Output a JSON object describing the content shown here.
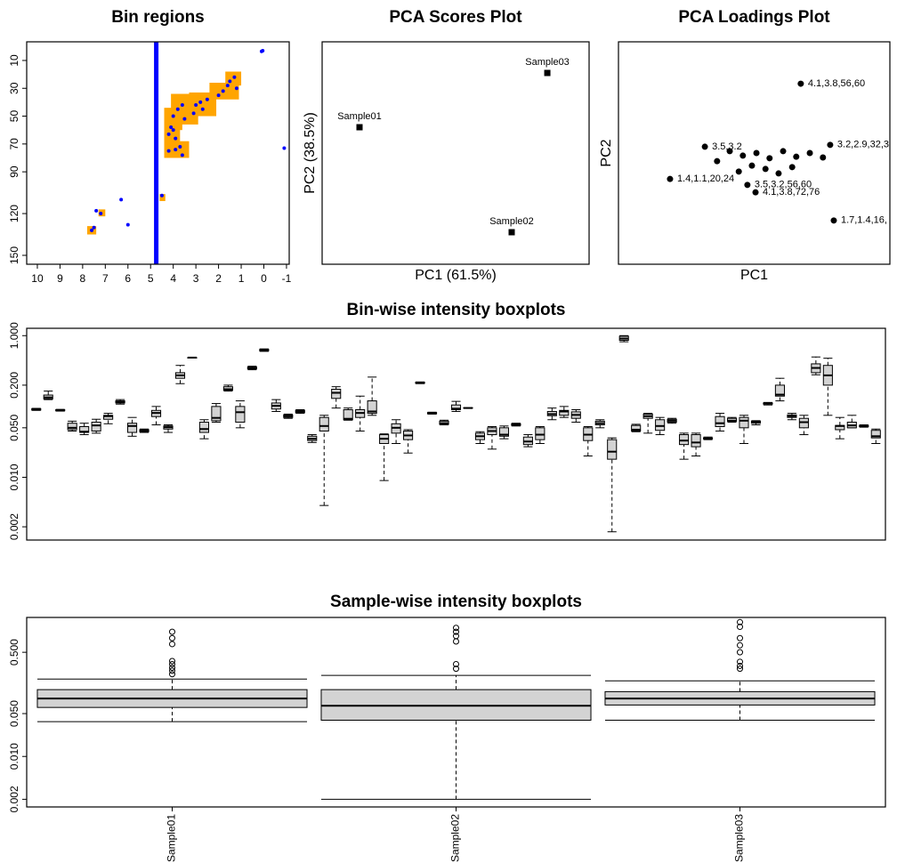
{
  "chart_data": [
    {
      "type": "scatter",
      "title": "Bin regions",
      "xlim": [
        10.47,
        -1.12
      ],
      "ylim": [
        156.4,
        -3.4
      ],
      "xticks": [
        10,
        9,
        8,
        7,
        6,
        5,
        4,
        3,
        2,
        1,
        0,
        -1
      ],
      "yticks": [
        10,
        30,
        50,
        70,
        90,
        120,
        150
      ],
      "bins_color": "#ffa500",
      "bins": [
        [
          1.7,
          1.0,
          18,
          28
        ],
        [
          2.4,
          1.1,
          26,
          38
        ],
        [
          3.3,
          2.1,
          33,
          50
        ],
        [
          4.1,
          2.9,
          34,
          56
        ],
        [
          4.4,
          3.6,
          44,
          60
        ],
        [
          4.4,
          3.7,
          58,
          70
        ],
        [
          4.4,
          3.3,
          68,
          80
        ],
        [
          4.6,
          4.35,
          106,
          111
        ],
        [
          7.3,
          7.0,
          117,
          122
        ],
        [
          7.8,
          7.4,
          129,
          135
        ]
      ],
      "lines": [
        {
          "color": "#0000ff",
          "x": [
            4.75,
            4.75
          ],
          "y": [
            -3.4,
            156.4
          ]
        }
      ],
      "series": [
        {
          "color": "#0000ff",
          "x": [
            0.05,
            0.1,
            1.3,
            1.5,
            1.2,
            1.8,
            2.0,
            1.6,
            2.5,
            2.8,
            3.0,
            2.7,
            3.1,
            3.6,
            3.8,
            3.5,
            4.0,
            4.0,
            4.2,
            3.9,
            4.1,
            3.7,
            3.9,
            4.2,
            3.6,
            7.6,
            7.5,
            7.2,
            7.4,
            6.3,
            6.0,
            -0.9,
            4.5
          ],
          "y": [
            3,
            3.5,
            22,
            25,
            30,
            32,
            35,
            28,
            38,
            40,
            42,
            45,
            48,
            42,
            45,
            52,
            50,
            60,
            63,
            66,
            58,
            72,
            74,
            75,
            78,
            132,
            130,
            120,
            118,
            110,
            128,
            73,
            107
          ]
        }
      ]
    },
    {
      "type": "scatter",
      "title": "PCA Scores Plot",
      "xlabel": "PC1 (61.5%)",
      "ylabel": "PC2 (38.5%)",
      "marker": "square",
      "xlim": [
        -1,
        1
      ],
      "ylim": [
        -1,
        1
      ],
      "series": [
        {
          "color": "#000000",
          "x": [
            -0.72,
            0.42,
            0.687
          ],
          "y": [
            0.232,
            -0.712,
            0.72
          ],
          "labels": [
            "Sample01",
            "Sample02",
            "Sample03"
          ]
        }
      ]
    },
    {
      "type": "scatter",
      "title": "PCA Loadings Plot",
      "xlabel": "PC1",
      "ylabel": "PC2",
      "marker": "circle",
      "xlim": [
        -0.3,
        0.3
      ],
      "ylim": [
        -0.3,
        0.3
      ],
      "series": [
        {
          "color": "#000000",
          "x": [
            0.103,
            0.168,
            -0.186,
            0.176,
            -0.015,
            0.003,
            -0.109,
            -0.082,
            -0.054,
            -0.025,
            0.005,
            0.034,
            0.064,
            0.093,
            0.123,
            0.152,
            0.025,
            0.054,
            0.084,
            -0.034,
            -0.005
          ],
          "y": [
            0.187,
            0.022,
            -0.07,
            -0.182,
            -0.086,
            -0.106,
            0.017,
            -0.022,
            0.005,
            -0.007,
            0,
            -0.014,
            0.005,
            -0.01,
            0,
            -0.012,
            -0.043,
            -0.055,
            -0.038,
            -0.05,
            -0.034
          ],
          "labels": [
            "4.1,3.8,56,60",
            "3.2,2.9,32,3",
            "1.4,1.1,20,24",
            "1.7,1.4,16,",
            "3.5,3.2,56,60",
            "4.1,3.8,72,76",
            "3.5,3.2",
            null,
            null,
            null,
            null,
            null,
            null,
            null,
            null,
            null,
            null,
            null,
            null,
            null,
            null
          ]
        }
      ]
    },
    {
      "type": "boxplot",
      "title": "Bin-wise intensity boxplots",
      "log": true,
      "color": "#d3d3d3",
      "ylim": [
        0.0013,
        1.27
      ],
      "yticks": [
        {
          "value": 0.002,
          "label": "0.002"
        },
        {
          "value": 0.01,
          "label": "0.010"
        },
        {
          "value": 0.05,
          "label": "0.050"
        },
        {
          "value": 0.2,
          "label": "0.200"
        },
        {
          "value": 1,
          "label": "1.000"
        }
      ],
      "stats": [
        [
          0.088,
          0.089,
          0.091,
          0.093,
          0.094
        ],
        [
          0.125,
          0.128,
          0.134,
          0.145,
          0.165
        ],
        [
          0.086,
          0.087,
          0.088,
          0.09,
          0.091
        ],
        [
          0.045,
          0.047,
          0.05,
          0.058,
          0.062
        ],
        [
          0.04,
          0.043,
          0.044,
          0.052,
          0.058
        ],
        [
          0.042,
          0.045,
          0.054,
          0.06,
          0.066
        ],
        [
          0.057,
          0.066,
          0.073,
          0.075,
          0.08
        ],
        [
          0.108,
          0.112,
          0.115,
          0.12,
          0.125
        ],
        [
          0.038,
          0.043,
          0.053,
          0.058,
          0.07
        ],
        [
          0.043,
          0.044,
          0.045,
          0.047,
          0.048
        ],
        [
          0.055,
          0.072,
          0.081,
          0.088,
          0.1
        ],
        [
          0.043,
          0.048,
          0.051,
          0.053,
          0.055
        ],
        [
          0.21,
          0.25,
          0.275,
          0.3,
          0.38
        ],
        [
          0.49,
          0.49,
          0.49,
          0.49,
          0.49
        ],
        [
          0.035,
          0.043,
          0.048,
          0.06,
          0.065
        ],
        [
          0.06,
          0.063,
          0.069,
          0.1,
          0.11
        ],
        [
          0.165,
          0.17,
          0.175,
          0.19,
          0.2
        ],
        [
          0.05,
          0.06,
          0.083,
          0.1,
          0.12
        ],
        [
          0.33,
          0.34,
          0.35,
          0.36,
          0.37
        ],
        [
          0.6,
          0.61,
          0.62,
          0.64,
          0.65
        ],
        [
          0.085,
          0.092,
          0.102,
          0.112,
          0.125
        ],
        [
          0.068,
          0.07,
          0.073,
          0.076,
          0.078
        ],
        [
          0.08,
          0.082,
          0.085,
          0.088,
          0.09
        ],
        [
          0.031,
          0.033,
          0.035,
          0.038,
          0.04
        ],
        [
          0.004,
          0.045,
          0.053,
          0.07,
          0.075
        ],
        [
          0.095,
          0.13,
          0.156,
          0.175,
          0.19
        ],
        [
          0.064,
          0.065,
          0.067,
          0.09,
          0.095
        ],
        [
          0.045,
          0.07,
          0.081,
          0.09,
          0.14
        ],
        [
          0.075,
          0.08,
          0.085,
          0.12,
          0.26
        ],
        [
          0.009,
          0.03,
          0.035,
          0.04,
          0.041
        ],
        [
          0.03,
          0.042,
          0.05,
          0.057,
          0.065
        ],
        [
          0.022,
          0.034,
          0.039,
          0.045,
          0.047
        ],
        [
          0.21,
          0.212,
          0.216,
          0.22,
          0.222
        ],
        [
          0.078,
          0.079,
          0.081,
          0.082,
          0.083
        ],
        [
          0.055,
          0.056,
          0.058,
          0.062,
          0.064
        ],
        [
          0.085,
          0.09,
          0.093,
          0.105,
          0.118
        ],
        [
          0.094,
          0.095,
          0.095,
          0.096,
          0.096
        ],
        [
          0.03,
          0.034,
          0.038,
          0.042,
          0.044
        ],
        [
          0.025,
          0.04,
          0.045,
          0.05,
          0.052
        ],
        [
          0.035,
          0.038,
          0.04,
          0.05,
          0.053
        ],
        [
          0.053,
          0.054,
          0.055,
          0.057,
          0.058
        ],
        [
          0.027,
          0.029,
          0.032,
          0.037,
          0.04
        ],
        [
          0.03,
          0.034,
          0.04,
          0.05,
          0.052
        ],
        [
          0.065,
          0.074,
          0.078,
          0.085,
          0.095
        ],
        [
          0.07,
          0.075,
          0.085,
          0.088,
          0.1
        ],
        [
          0.06,
          0.068,
          0.076,
          0.084,
          0.09
        ],
        [
          0.02,
          0.033,
          0.04,
          0.05,
          0.052
        ],
        [
          0.05,
          0.055,
          0.058,
          0.062,
          0.065
        ],
        [
          0.0017,
          0.018,
          0.023,
          0.034,
          0.036
        ],
        [
          0.82,
          0.86,
          0.91,
          0.98,
          1.0
        ],
        [
          0.044,
          0.045,
          0.047,
          0.054,
          0.056
        ],
        [
          0.042,
          0.068,
          0.073,
          0.078,
          0.08
        ],
        [
          0.04,
          0.046,
          0.053,
          0.065,
          0.07
        ],
        [
          0.058,
          0.06,
          0.063,
          0.066,
          0.068
        ],
        [
          0.018,
          0.029,
          0.033,
          0.04,
          0.042
        ],
        [
          0.02,
          0.027,
          0.031,
          0.04,
          0.042
        ],
        [
          0.034,
          0.035,
          0.035,
          0.036,
          0.037
        ],
        [
          0.045,
          0.052,
          0.058,
          0.072,
          0.08
        ],
        [
          0.06,
          0.062,
          0.063,
          0.068,
          0.07
        ],
        [
          0.03,
          0.05,
          0.063,
          0.07,
          0.075
        ],
        [
          0.055,
          0.058,
          0.06,
          0.062,
          0.063
        ],
        [
          0.105,
          0.108,
          0.11,
          0.112,
          0.114
        ],
        [
          0.12,
          0.14,
          0.147,
          0.2,
          0.25
        ],
        [
          0.065,
          0.07,
          0.073,
          0.076,
          0.08
        ],
        [
          0.04,
          0.05,
          0.06,
          0.068,
          0.075
        ],
        [
          0.28,
          0.3,
          0.35,
          0.4,
          0.5
        ],
        [
          0.075,
          0.2,
          0.275,
          0.38,
          0.48
        ],
        [
          0.035,
          0.047,
          0.053,
          0.054,
          0.07
        ],
        [
          0.05,
          0.05,
          0.054,
          0.06,
          0.075
        ],
        [
          0.051,
          0.052,
          0.053,
          0.054,
          0.055
        ],
        [
          0.03,
          0.036,
          0.038,
          0.046,
          0.048
        ]
      ]
    },
    {
      "type": "boxplot",
      "title": "Sample-wise intensity boxplots",
      "log": true,
      "color": "#d3d3d3",
      "ylim": [
        0.0015,
        1.85
      ],
      "yticks": [
        {
          "value": 0.002,
          "label": "0.002"
        },
        {
          "value": 0.01,
          "label": "0.010"
        },
        {
          "value": 0.05,
          "label": "0.050"
        },
        {
          "value": 0.5,
          "label": "0.500"
        }
      ],
      "categories": [
        "Sample01",
        "Sample02",
        "Sample03"
      ],
      "stats": [
        [
          0.037,
          0.063,
          0.088,
          0.123,
          0.183
        ],
        [
          0.002,
          0.039,
          0.067,
          0.123,
          0.21
        ],
        [
          0.039,
          0.069,
          0.088,
          0.114,
          0.171
        ]
      ],
      "outliers": [
        [
          1.08,
          0.85,
          0.68,
          0.36,
          0.32,
          0.28,
          0.25,
          0.22
        ],
        [
          1.25,
          1.08,
          0.92,
          0.75,
          0.32,
          0.27
        ],
        [
          1.55,
          1.3,
          0.85,
          0.65,
          0.5,
          0.35,
          0.3,
          0.27
        ]
      ]
    }
  ]
}
